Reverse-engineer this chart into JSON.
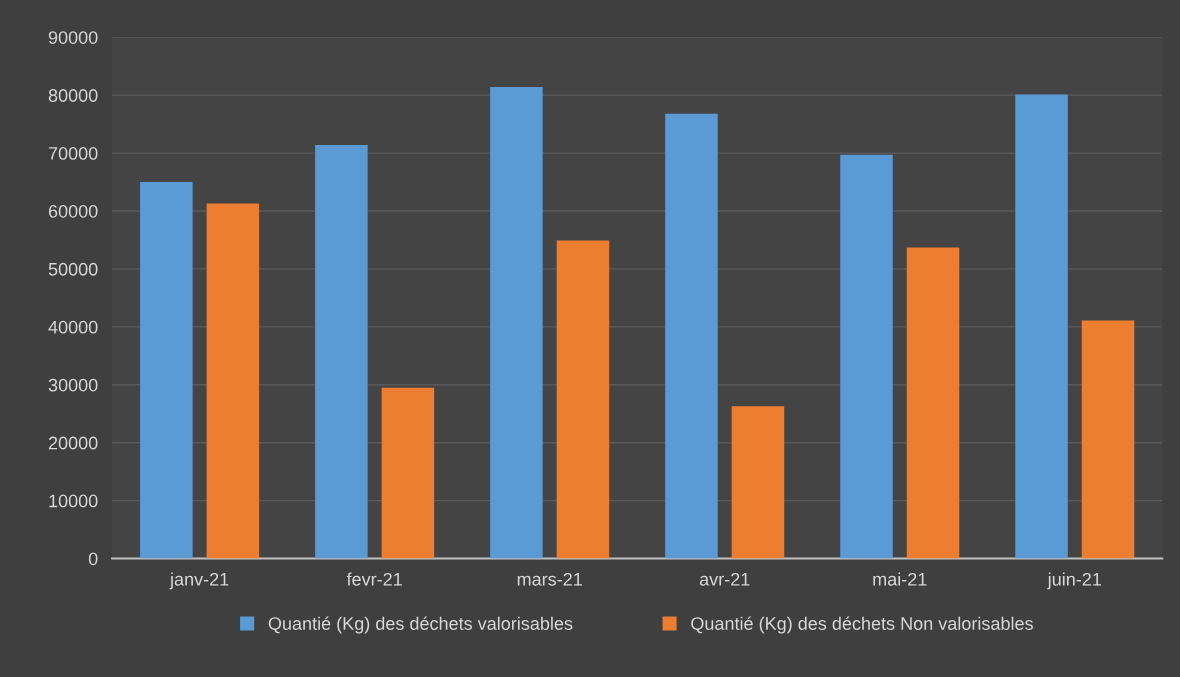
{
  "chart_data": {
    "type": "bar",
    "categories": [
      "janv-21",
      "fevr-21",
      "mars-21",
      "avr-21",
      "mai-21",
      "juin-21"
    ],
    "series": [
      {
        "name": "Quantié (Kg) des déchets valorisables",
        "color": "#5b9bd5",
        "values": [
          65000,
          71400,
          81400,
          76800,
          69700,
          80100
        ]
      },
      {
        "name": "Quantié (Kg) des déchets Non valorisables",
        "color": "#ed7d31",
        "values": [
          61300,
          29500,
          54900,
          26300,
          53700,
          41100
        ]
      }
    ],
    "ylim": [
      0,
      90000
    ],
    "yticks": [
      0,
      10000,
      20000,
      30000,
      40000,
      50000,
      60000,
      70000,
      80000,
      90000
    ],
    "grid": "y",
    "legend": "bottom"
  }
}
